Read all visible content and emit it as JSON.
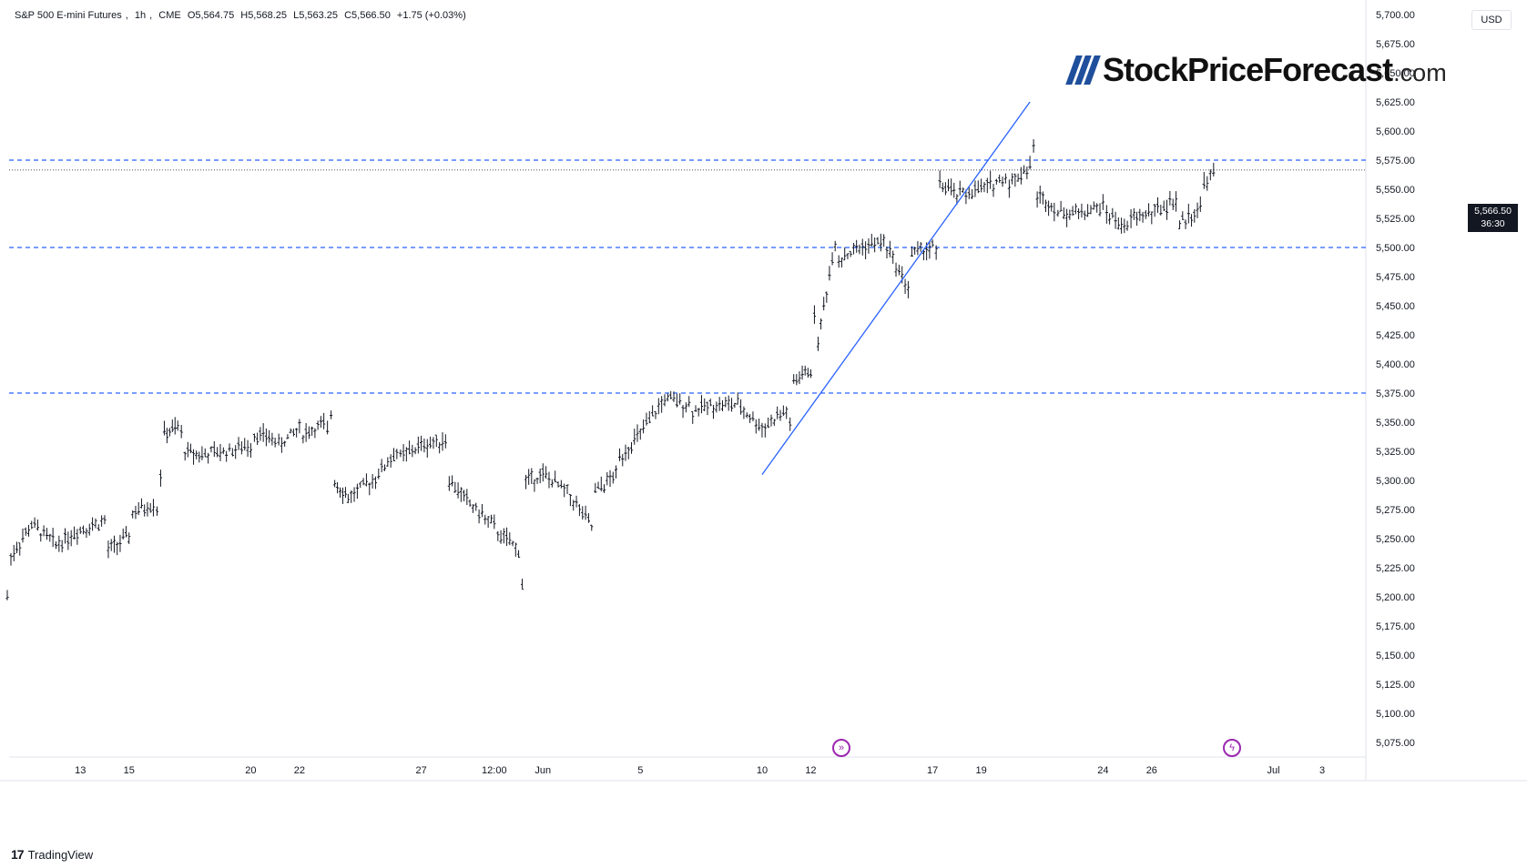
{
  "header": {
    "symbol": "S&P 500 E-mini Futures",
    "interval": "1h",
    "exchange": "CME",
    "open": "O5,564.75",
    "high": "H5,568.25",
    "low": "L5,563.25",
    "close": "C5,566.50",
    "change": "+1.75 (+0.03%)"
  },
  "currency": "USD",
  "last_price": "5,566.50",
  "countdown": "36:30",
  "brand": {
    "name": "StockPriceForecast",
    "domain": ".com"
  },
  "footer": {
    "provider": "TradingView"
  },
  "colors": {
    "line": "#2962ff",
    "bars": "#131722",
    "dashed": "#2962ff",
    "icon": "#9c27b0"
  },
  "icons": [
    "forward-arrow-icon",
    "lightning-icon"
  ],
  "chart_data": {
    "type": "ohlc",
    "ylim": [
      5062.5,
      5712.5
    ],
    "y_ticks": [
      "5,075.00",
      "5,100.00",
      "5,125.00",
      "5,150.00",
      "5,175.00",
      "5,200.00",
      "5,225.00",
      "5,250.00",
      "5,275.00",
      "5,300.00",
      "5,325.00",
      "5,350.00",
      "5,375.00",
      "5,400.00",
      "5,425.00",
      "5,450.00",
      "5,475.00",
      "5,500.00",
      "5,525.00",
      "5,550.00",
      "5,575.00",
      "5,600.00",
      "5,625.00",
      "5,650.00",
      "5,675.00",
      "5,700.00"
    ],
    "x_labels": [
      "13",
      "15",
      "20",
      "22",
      "27",
      "12:00",
      "Jun",
      "5",
      "10",
      "12",
      "17",
      "19",
      "24",
      "26",
      "Jul",
      "3"
    ],
    "horizontal_levels": [
      5575,
      5500,
      5375
    ],
    "current_price": 5566.5,
    "trendline": {
      "from": [
        "Jun 10",
        5305
      ],
      "to": [
        "Jun 21",
        5625
      ]
    },
    "path": [
      [
        "May 10",
        5200
      ],
      [
        "May 10",
        5235
      ],
      [
        "May 11",
        5262
      ],
      [
        "May 12",
        5245
      ],
      [
        "May 13",
        5258
      ],
      [
        "May 14",
        5265
      ],
      [
        "May 14",
        5240
      ],
      [
        "May 15",
        5252
      ],
      [
        "May 15",
        5272
      ],
      [
        "May 16",
        5280
      ],
      [
        "May 16",
        5275
      ],
      [
        "May 16",
        5305
      ],
      [
        "May 16",
        5340
      ],
      [
        "May 17",
        5345
      ],
      [
        "May 17",
        5340
      ],
      [
        "May 17",
        5325
      ],
      [
        "May 18",
        5322
      ],
      [
        "May 19",
        5325
      ],
      [
        "May 20",
        5330
      ],
      [
        "May 20",
        5340
      ],
      [
        "May 21",
        5335
      ],
      [
        "May 21",
        5330
      ],
      [
        "May 22",
        5345
      ],
      [
        "May 22",
        5340
      ],
      [
        "May 23",
        5348
      ],
      [
        "May 23",
        5340
      ],
      [
        "May 23",
        5358
      ],
      [
        "May 23",
        5300
      ],
      [
        "May 24",
        5285
      ],
      [
        "May 25",
        5300
      ],
      [
        "May 26",
        5325
      ],
      [
        "May 26",
        5320
      ],
      [
        "May 27",
        5330
      ],
      [
        "May 28",
        5335
      ],
      [
        "May 28",
        5300
      ],
      [
        "May 29",
        5280
      ],
      [
        "May 30",
        5260
      ],
      [
        "May 30",
        5255
      ],
      [
        "May 31",
        5240
      ],
      [
        "May 31",
        5210
      ],
      [
        "May 31",
        5300
      ],
      [
        "Jun 1",
        5305
      ],
      [
        "Jun 2",
        5290
      ],
      [
        "Jun 3",
        5260
      ],
      [
        "Jun 3",
        5290
      ],
      [
        "Jun 4",
        5305
      ],
      [
        "Jun 4",
        5320
      ],
      [
        "Jun 5",
        5340
      ],
      [
        "Jun 6",
        5370
      ],
      [
        "Jun 7",
        5365
      ],
      [
        "Jun 7",
        5360
      ],
      [
        "Jun 8",
        5365
      ],
      [
        "Jun 9",
        5365
      ],
      [
        "Jun 10",
        5345
      ],
      [
        "Jun 11",
        5360
      ],
      [
        "Jun 11",
        5345
      ],
      [
        "Jun 11",
        5385
      ],
      [
        "Jun 12",
        5395
      ],
      [
        "Jun 12",
        5440
      ],
      [
        "Jun 12",
        5420
      ],
      [
        "Jun 13",
        5505
      ],
      [
        "Jun 13",
        5490
      ],
      [
        "Jun 14",
        5500
      ],
      [
        "Jun 15",
        5505
      ],
      [
        "Jun 16",
        5465
      ],
      [
        "Jun 16",
        5495
      ],
      [
        "Jun 17",
        5500
      ],
      [
        "Jun 17",
        5495
      ],
      [
        "Jun 17",
        5555
      ],
      [
        "Jun 18",
        5545
      ],
      [
        "Jun 19",
        5550
      ],
      [
        "Jun 20",
        5560
      ],
      [
        "Jun 20",
        5555
      ],
      [
        "Jun 21",
        5570
      ],
      [
        "Jun 21",
        5585
      ],
      [
        "Jun 21",
        5545
      ],
      [
        "Jun 22",
        5535
      ],
      [
        "Jun 22",
        5530
      ],
      [
        "Jun 23",
        5530
      ],
      [
        "Jun 24",
        5535
      ],
      [
        "Jun 24",
        5530
      ],
      [
        "Jun 25",
        5515
      ],
      [
        "Jun 25",
        5525
      ],
      [
        "Jun 26",
        5530
      ],
      [
        "Jun 27",
        5540
      ],
      [
        "Jun 27",
        5520
      ],
      [
        "Jun 28",
        5535
      ],
      [
        "Jun 28",
        5555
      ],
      [
        "Jun 28",
        5566.5
      ]
    ]
  }
}
